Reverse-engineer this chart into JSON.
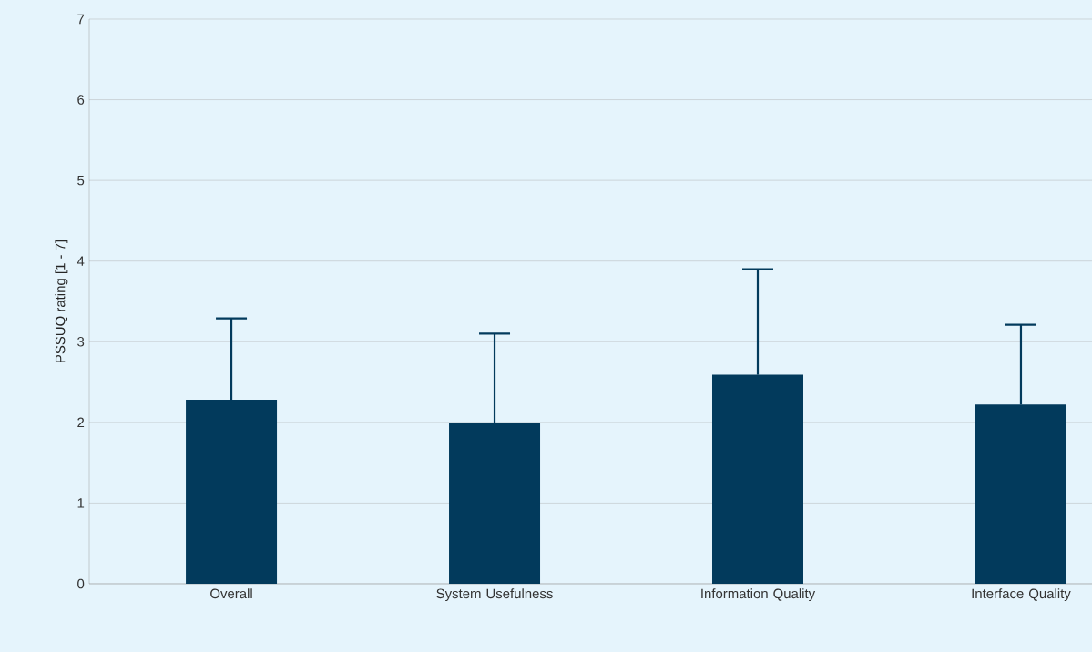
{
  "chart_data": {
    "type": "bar",
    "ylabel": "PSSUQ rating [1 - 7]",
    "categories": [
      "Overall",
      "System Usefulness",
      "Information Quality",
      "Interface Quality"
    ],
    "values": [
      2.28,
      1.99,
      2.59,
      2.22
    ],
    "errors": [
      [
        2.28,
        3.29
      ],
      [
        1.99,
        3.1
      ],
      [
        2.59,
        3.9
      ],
      [
        2.22,
        3.21
      ]
    ],
    "color": "#023a5c",
    "ylim": [
      0,
      7
    ],
    "yticks": [
      0,
      1,
      2,
      3,
      4,
      5,
      6,
      7
    ],
    "grid": "y"
  }
}
